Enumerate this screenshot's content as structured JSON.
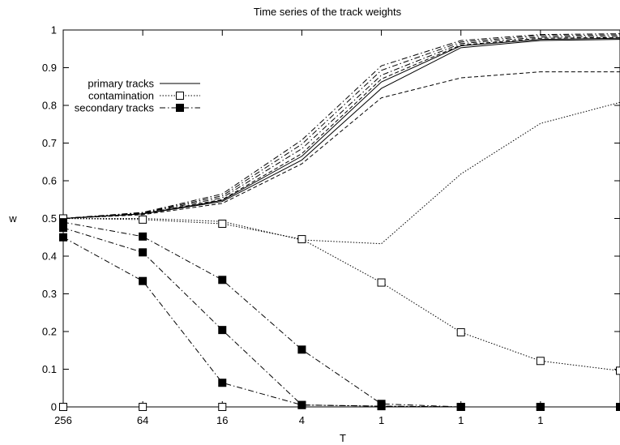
{
  "chart_data": {
    "type": "line",
    "title": "Time series of the track weights",
    "xlabel": "T",
    "ylabel": "w",
    "categories": [
      "256",
      "64",
      "16",
      "4",
      "1",
      "1",
      "1",
      ""
    ],
    "ylim": [
      0,
      1
    ],
    "yticks": [
      "0",
      "0.1",
      "0.2",
      "0.3",
      "0.4",
      "0.5",
      "0.6",
      "0.7",
      "0.8",
      "0.9",
      "1"
    ],
    "grid": false,
    "legend_position": "top-left",
    "legend": [
      {
        "label": "primary tracks",
        "style": "solid",
        "marker": "none"
      },
      {
        "label": "contamination",
        "style": "dotted",
        "marker": "open-square"
      },
      {
        "label": "secondary tracks",
        "style": "dashdot",
        "marker": "filled-square"
      }
    ],
    "series": [
      {
        "group": "primary tracks",
        "style": "solid",
        "marker": "none",
        "values": [
          0.5,
          0.512,
          0.545,
          0.655,
          0.845,
          0.953,
          0.972,
          0.975
        ]
      },
      {
        "group": "primary tracks",
        "style": "solid",
        "marker": "none",
        "values": [
          0.5,
          0.512,
          0.548,
          0.665,
          0.862,
          0.958,
          0.975,
          0.978
        ]
      },
      {
        "group": "primary tracks",
        "style": "dashed",
        "marker": "none",
        "values": [
          0.5,
          0.51,
          0.54,
          0.645,
          0.82,
          0.873,
          0.889,
          0.889
        ]
      },
      {
        "group": "primary tracks",
        "style": "dashed",
        "marker": "none",
        "values": [
          0.5,
          0.513,
          0.55,
          0.672,
          0.87,
          0.96,
          0.978,
          0.98
        ]
      },
      {
        "group": "primary tracks",
        "style": "dashdot",
        "marker": "none",
        "values": [
          0.5,
          0.514,
          0.555,
          0.685,
          0.88,
          0.964,
          0.981,
          0.983
        ]
      },
      {
        "group": "primary tracks",
        "style": "dashdot",
        "marker": "none",
        "values": [
          0.5,
          0.515,
          0.56,
          0.697,
          0.893,
          0.968,
          0.985,
          0.987
        ]
      },
      {
        "group": "primary tracks",
        "style": "dashdot",
        "marker": "none",
        "values": [
          0.5,
          0.516,
          0.565,
          0.708,
          0.905,
          0.972,
          0.988,
          0.99
        ]
      },
      {
        "group": "contamination",
        "style": "dotted",
        "marker": "none",
        "values": [
          0.5,
          0.5,
          0.492,
          0.443,
          0.433,
          0.618,
          0.752,
          0.808
        ]
      },
      {
        "group": "contamination",
        "style": "dotted",
        "marker": "open-square",
        "values": [
          0.5,
          0.497,
          0.486,
          0.445,
          0.33,
          0.198,
          0.122,
          0.096
        ]
      },
      {
        "group": "contamination",
        "style": "dotted",
        "marker": "open-square",
        "values": [
          0.0,
          0.0,
          0.0,
          null,
          null,
          null,
          null,
          null
        ]
      },
      {
        "group": "secondary tracks",
        "style": "dashdot",
        "marker": "filled-square",
        "values": [
          0.49,
          0.452,
          0.337,
          0.152,
          0.008,
          0.0,
          0.0,
          0.0
        ]
      },
      {
        "group": "secondary tracks",
        "style": "dashdot",
        "marker": "filled-square",
        "values": [
          0.475,
          0.41,
          0.204,
          0.005,
          0.002,
          0.0,
          0.0,
          0.0
        ]
      },
      {
        "group": "secondary tracks",
        "style": "dashdot",
        "marker": "filled-square",
        "values": [
          0.45,
          0.334,
          0.064,
          0.005,
          0.002,
          0.0,
          0.0,
          0.0
        ]
      }
    ]
  }
}
